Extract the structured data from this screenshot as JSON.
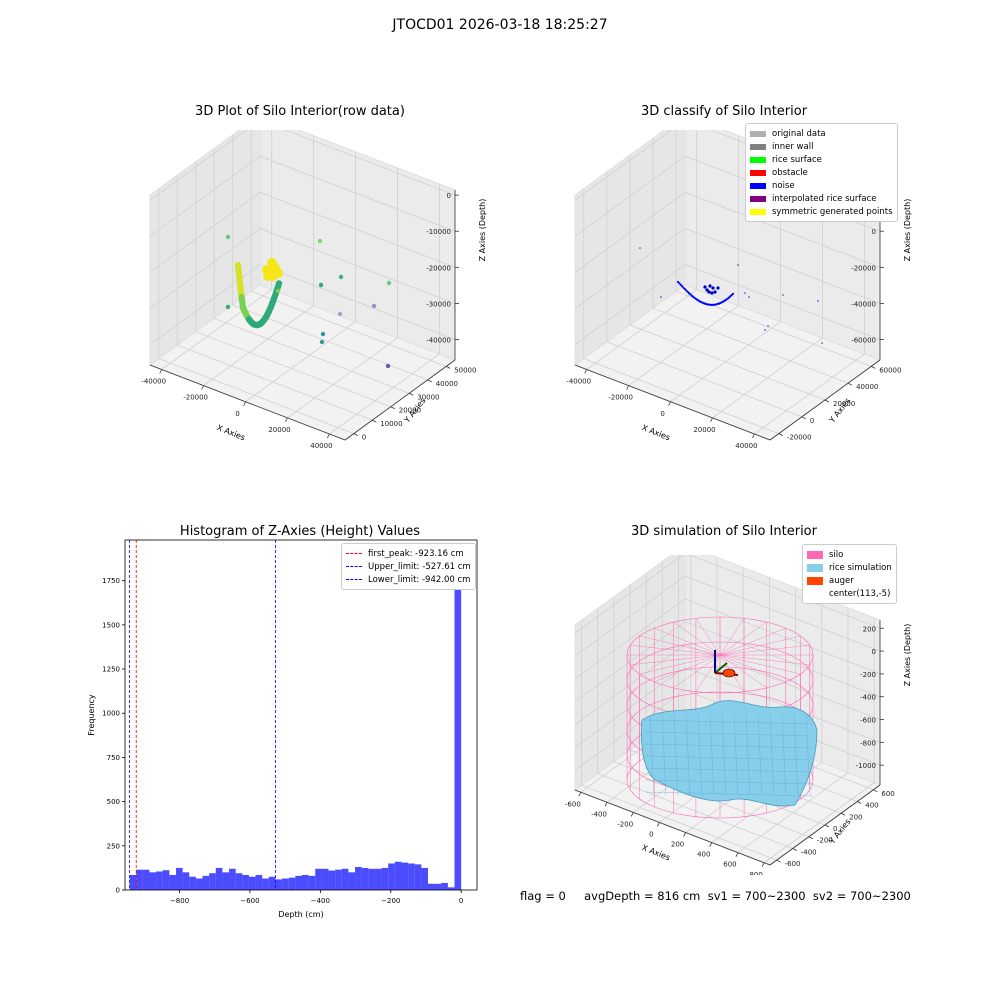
{
  "figure": {
    "suptitle": "JTOCD01 2026-03-18 18:25:27"
  },
  "chart_data": [
    {
      "type": "scatter",
      "projection": "3d",
      "title": "3D Plot of Silo Interior(row data)",
      "xlabel": "X Axies",
      "ylabel": "Y Axies",
      "zlabel": "Z Axies (Depth)",
      "xticks": [
        "-40000",
        "-20000",
        "0",
        "20000",
        "40000"
      ],
      "yticks": [
        "0",
        "10000",
        "20000",
        "30000",
        "40000",
        "50000"
      ],
      "zticks": [
        "0",
        "-10000",
        "-20000",
        "-30000",
        "-40000"
      ],
      "xlim": [
        -50000,
        45000
      ],
      "ylim": [
        -5000,
        55000
      ],
      "zlim": [
        -45000,
        0
      ]
    },
    {
      "type": "scatter",
      "projection": "3d",
      "title": "3D classify of Silo Interior",
      "xlabel": "X Axies",
      "ylabel": "Y Axies",
      "zlabel": "Z Axies (Depth)",
      "xticks": [
        "-40000",
        "-20000",
        "0",
        "20000",
        "40000"
      ],
      "yticks": [
        "-20000",
        "0",
        "20000",
        "40000",
        "60000"
      ],
      "zticks": [
        "20000",
        "0",
        "-20000",
        "-40000",
        "-60000"
      ],
      "legend": [
        {
          "label": "original data",
          "color": "#b0b0b0"
        },
        {
          "label": "inner wall",
          "color": "#808080"
        },
        {
          "label": "rice surface",
          "color": "#00ff00"
        },
        {
          "label": "obstacle",
          "color": "#ff0000"
        },
        {
          "label": "noise",
          "color": "#0000ff"
        },
        {
          "label": "interpolated rice surface",
          "color": "#800080"
        },
        {
          "label": "symmetric generated points",
          "color": "#ffff00"
        }
      ]
    },
    {
      "type": "bar",
      "title": "Histogram of Z-Axies (Height) Values",
      "xlabel": "Depth (cm)",
      "ylabel": "Frequency",
      "xlim": [
        -955,
        45
      ],
      "ylim": [
        0,
        1980
      ],
      "xticks": [
        -800,
        -600,
        -400,
        -200,
        0
      ],
      "yticks": [
        0,
        250,
        500,
        750,
        1000,
        1250,
        1500,
        1750
      ],
      "bin_start": -942,
      "bin_width": 18.84,
      "values": [
        85,
        115,
        115,
        100,
        105,
        112,
        85,
        125,
        100,
        75,
        65,
        80,
        95,
        125,
        100,
        120,
        95,
        85,
        75,
        85,
        65,
        75,
        60,
        65,
        70,
        80,
        85,
        80,
        120,
        120,
        110,
        115,
        120,
        100,
        130,
        125,
        120,
        120,
        125,
        150,
        160,
        155,
        150,
        145,
        125,
        35,
        35,
        40,
        15,
        1880
      ],
      "bar_color": "#0000ff",
      "vlines": [
        {
          "label": "first_peak: -923.16 cm",
          "x": -923.16,
          "color": "#ff0000"
        },
        {
          "label": "Upper_limit: -527.61 cm",
          "x": -527.61,
          "color": "#0000ff"
        },
        {
          "label": "Lower_limit: -942.00 cm",
          "x": -942.0,
          "color": "#0000ff"
        }
      ]
    },
    {
      "type": "surface",
      "projection": "3d",
      "title": "3D simulation of Silo Interior",
      "xlabel": "X Axies",
      "ylabel": "Y Axies",
      "zlabel": "Z Axies (Depth)",
      "xticks": [
        "-600",
        "-400",
        "-200",
        "0",
        "200",
        "400",
        "600",
        "800"
      ],
      "yticks": [
        "-600",
        "-400",
        "-200",
        "0",
        "200",
        "400",
        "600"
      ],
      "zticks": [
        "200",
        "0",
        "-200",
        "-400",
        "-600",
        "-800",
        "-1000"
      ],
      "legend": [
        {
          "label": "silo",
          "color": "#ff69b4"
        },
        {
          "label": "rice simulation",
          "color": "#87ceeb"
        },
        {
          "label": "auger",
          "color": "#ff4500"
        },
        {
          "label": "center(113,-5)",
          "color": "#ffffff"
        }
      ]
    }
  ],
  "footer": {
    "text": "flag = 0     avgDepth = 816 cm  sv1 = 700~2300  sv2 = 700~2300"
  }
}
